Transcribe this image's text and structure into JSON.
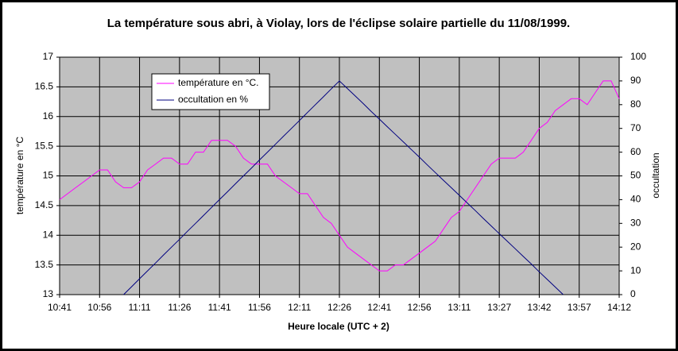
{
  "chart_data": {
    "type": "line",
    "title": "La température sous abri, à Violay, lors de l'éclipse solaire partielle du 11/08/1999.",
    "x_label": "Heure locale (UTC + 2)",
    "y_label": "température en °C",
    "y2_label": "occultation",
    "categories": [
      "10:41",
      null,
      null,
      null,
      null,
      "10:56",
      null,
      null,
      null,
      null,
      "11:11",
      null,
      null,
      null,
      null,
      "11:26",
      null,
      null,
      null,
      null,
      "11:41",
      null,
      null,
      null,
      null,
      "11:56",
      null,
      null,
      null,
      null,
      "12:11",
      null,
      null,
      null,
      null,
      "12:26",
      null,
      null,
      null,
      null,
      "12:41",
      null,
      null,
      null,
      null,
      "12:56",
      null,
      null,
      null,
      null,
      "13:11",
      null,
      null,
      null,
      null,
      "13:27",
      null,
      null,
      null,
      null,
      "13:42",
      null,
      null,
      null,
      null,
      "13:57",
      null,
      null,
      null,
      null,
      "14:12"
    ],
    "series": [
      {
        "name": "température en °C.",
        "color": "#ff00ff",
        "values": [
          14.6,
          14.7,
          14.8,
          14.9,
          15.0,
          15.1,
          15.1,
          14.9,
          14.8,
          14.8,
          14.9,
          15.1,
          15.2,
          15.3,
          15.3,
          15.2,
          15.2,
          15.4,
          15.4,
          15.6,
          15.6,
          15.6,
          15.5,
          15.3,
          15.2,
          15.2,
          15.2,
          15.0,
          14.9,
          14.8,
          14.7,
          14.7,
          14.5,
          14.3,
          14.2,
          14.0,
          13.8,
          13.7,
          13.6,
          13.5,
          13.4,
          13.4,
          13.5,
          13.5,
          13.6,
          13.7,
          13.8,
          13.9,
          14.1,
          14.3,
          14.4,
          14.6,
          14.8,
          15.0,
          15.2,
          15.3,
          15.3,
          15.3,
          15.4,
          15.6,
          15.8,
          15.9,
          16.1,
          16.2,
          16.3,
          16.3,
          16.2,
          16.4,
          16.6,
          16.6,
          16.3
        ]
      },
      {
        "name": "occultation en %",
        "color": "#000080",
        "axis": "y2",
        "values": [
          null,
          null,
          null,
          null,
          null,
          null,
          null,
          null,
          0,
          3.3,
          6.7,
          10,
          13.3,
          16.7,
          20,
          23.3,
          26.7,
          30,
          33.3,
          36.7,
          40,
          43.3,
          46.7,
          50,
          53.3,
          56.7,
          60,
          63.3,
          66.7,
          70,
          73.3,
          76.7,
          80,
          83.3,
          86.7,
          90,
          86.8,
          83.6,
          80.4,
          77.1,
          73.9,
          70.7,
          67.5,
          64.3,
          61.1,
          57.9,
          54.6,
          51.4,
          48.2,
          45.0,
          41.8,
          38.6,
          35.4,
          32.1,
          28.9,
          25.7,
          22.5,
          19.3,
          16.1,
          12.9,
          9.6,
          6.4,
          3.2,
          0,
          null,
          null,
          null,
          null,
          null,
          null,
          null
        ]
      }
    ],
    "ylim": [
      13,
      17
    ],
    "yticks": [
      13,
      13.5,
      14,
      14.5,
      15,
      15.5,
      16,
      16.5,
      17
    ],
    "y2lim": [
      0,
      100
    ],
    "y2ticks": [
      0,
      10,
      20,
      30,
      40,
      50,
      60,
      70,
      80,
      90,
      100
    ],
    "grid": true,
    "legend": "top-left"
  }
}
